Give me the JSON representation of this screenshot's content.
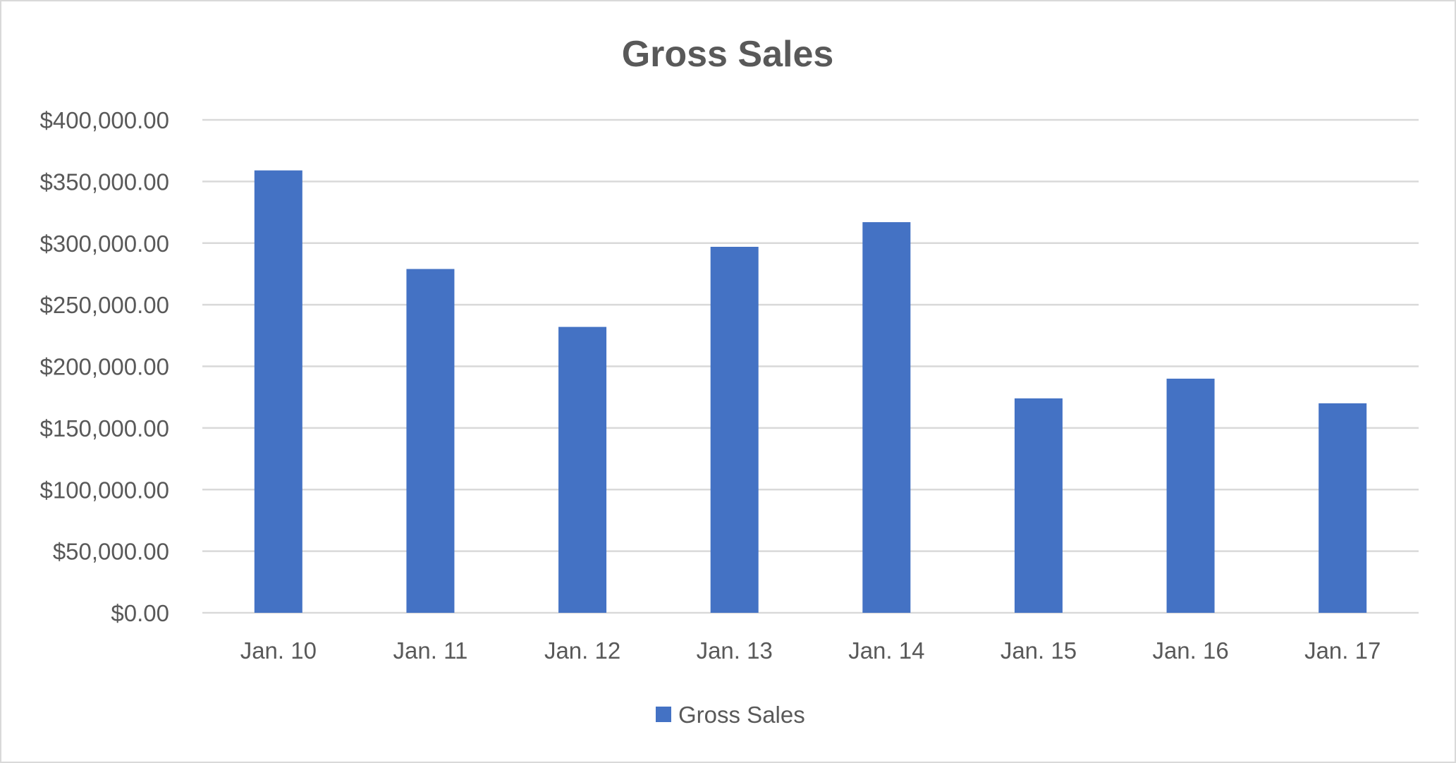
{
  "chart_data": {
    "type": "bar",
    "title": "Gross Sales",
    "xlabel": "",
    "ylabel": "",
    "categories": [
      "Jan. 10",
      "Jan. 11",
      "Jan. 12",
      "Jan. 13",
      "Jan. 14",
      "Jan. 15",
      "Jan. 16",
      "Jan. 17"
    ],
    "series": [
      {
        "name": "Gross Sales",
        "color": "#4472C4",
        "values": [
          359000,
          279000,
          232000,
          297000,
          317000,
          174000,
          190000,
          170000
        ]
      }
    ],
    "ylim": [
      0,
      400000
    ],
    "yticks": [
      0,
      50000,
      100000,
      150000,
      200000,
      250000,
      300000,
      350000,
      400000
    ],
    "ytick_labels": [
      "$0.00",
      "$50,000.00",
      "$100,000.00",
      "$150,000.00",
      "$200,000.00",
      "$250,000.00",
      "$300,000.00",
      "$350,000.00",
      "$400,000.00"
    ],
    "grid": true,
    "legend_position": "bottom",
    "legend_label": "Gross Sales"
  }
}
